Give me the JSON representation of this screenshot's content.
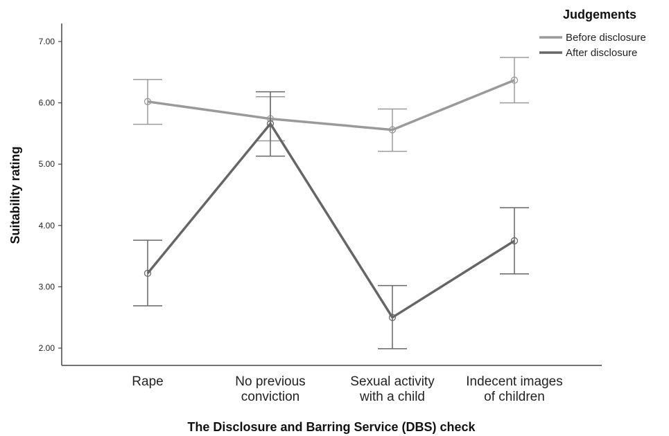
{
  "chart_data": {
    "type": "line",
    "xlabel": "The Disclosure and Barring Service (DBS) check",
    "ylabel": "Suitability rating",
    "categories": [
      [
        "Rape"
      ],
      [
        "No previous",
        "conviction"
      ],
      [
        "Sexual activity",
        "with a child"
      ],
      [
        "Indecent images",
        "of children"
      ]
    ],
    "ylim": [
      2.0,
      7.0
    ],
    "yticks": [
      "2.00",
      "3.00",
      "4.00",
      "5.00",
      "6.00",
      "7.00"
    ],
    "grid": false,
    "legend": {
      "title": "Judgements",
      "placement": "top-right"
    },
    "series": [
      {
        "name": "Before disclosure",
        "color": "#9a9a9a",
        "values": [
          6.02,
          5.74,
          5.56,
          6.37
        ],
        "error_low": [
          5.65,
          5.38,
          5.21,
          6.0
        ],
        "error_high": [
          6.38,
          6.1,
          5.9,
          6.74
        ]
      },
      {
        "name": "After disclosure",
        "color": "#666666",
        "values": [
          3.22,
          5.66,
          2.5,
          3.75
        ],
        "error_low": [
          2.69,
          5.13,
          1.99,
          3.21
        ],
        "error_high": [
          3.76,
          6.18,
          3.02,
          4.29
        ]
      }
    ]
  }
}
